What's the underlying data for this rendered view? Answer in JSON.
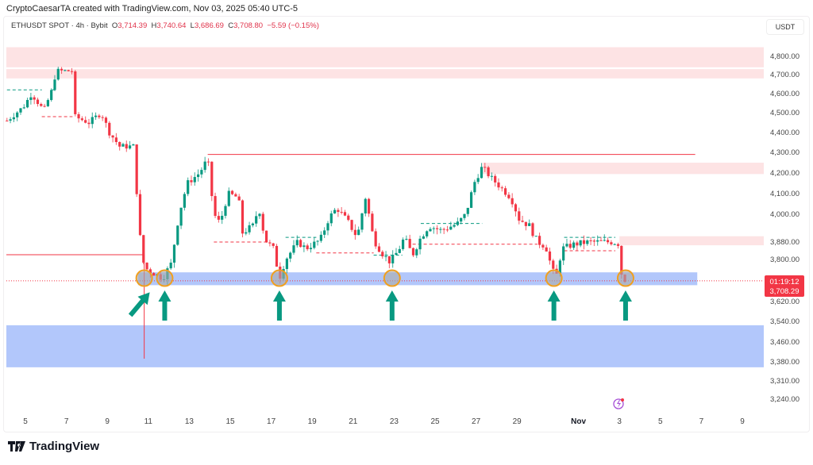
{
  "credit": "CryptoCaesarTA created with TradingView.com, Nov 03, 2025 05:40 UTC-5",
  "legend": {
    "symbol": "ETHUSDT SPOT · 4h · Bybit",
    "o_label": "O",
    "o": "3,714.39",
    "h_label": "H",
    "h": "3,740.64",
    "l_label": "L",
    "l": "3,686.69",
    "c_label": "C",
    "c": "3,708.80",
    "change": "−5.59 (−0.15%)"
  },
  "currency": "USDT",
  "price_tag": {
    "countdown": "01:19:12",
    "price": "3,708.29"
  },
  "logo": "TradingView",
  "colors": {
    "up": "#089981",
    "down": "#f23645",
    "supply": "#fde1e3",
    "demand": "#aec4fb",
    "circle": "#f0a020"
  },
  "chart_data": {
    "type": "candlestick",
    "title": "ETHUSDT SPOT 4h Bybit",
    "y_ticks": [
      {
        "v": 4800,
        "label": "4,800.00"
      },
      {
        "v": 4700,
        "label": "4,700.00"
      },
      {
        "v": 4600,
        "label": "4,600.00"
      },
      {
        "v": 4500,
        "label": "4,500.00"
      },
      {
        "v": 4400,
        "label": "4,400.00"
      },
      {
        "v": 4300,
        "label": "4,300.00"
      },
      {
        "v": 4200,
        "label": "4,200.00"
      },
      {
        "v": 4100,
        "label": "4,100.00"
      },
      {
        "v": 4000,
        "label": "4,000.00"
      },
      {
        "v": 3880,
        "label": "3,880.00"
      },
      {
        "v": 3800,
        "label": "3,800.00"
      },
      {
        "v": 3620,
        "label": "3,620.00"
      },
      {
        "v": 3540,
        "label": "3,540.00"
      },
      {
        "v": 3460,
        "label": "3,460.00"
      },
      {
        "v": 3380,
        "label": "3,380.00"
      },
      {
        "v": 3310,
        "label": "3,310.00"
      },
      {
        "v": 3240,
        "label": "3,240.00"
      }
    ],
    "x_ticks": [
      {
        "d": 5,
        "label": "5"
      },
      {
        "d": 7,
        "label": "7"
      },
      {
        "d": 9,
        "label": "9"
      },
      {
        "d": 11,
        "label": "11"
      },
      {
        "d": 13,
        "label": "13"
      },
      {
        "d": 15,
        "label": "15"
      },
      {
        "d": 17,
        "label": "17"
      },
      {
        "d": 19,
        "label": "19"
      },
      {
        "d": 21,
        "label": "21"
      },
      {
        "d": 23,
        "label": "23"
      },
      {
        "d": 25,
        "label": "25"
      },
      {
        "d": 27,
        "label": "27"
      },
      {
        "d": 29,
        "label": "29"
      },
      {
        "d": 32,
        "label": "Nov"
      },
      {
        "d": 34,
        "label": "3"
      },
      {
        "d": 36,
        "label": "5"
      },
      {
        "d": 38,
        "label": "7"
      },
      {
        "d": 40,
        "label": "9"
      }
    ],
    "price_path_day_price": [
      [
        4.1,
        4460
      ],
      [
        4.9,
        4530
      ],
      [
        5.3,
        4600
      ],
      [
        5.9,
        4510
      ],
      [
        6.3,
        4620
      ],
      [
        6.5,
        4720
      ],
      [
        7.3,
        4720
      ],
      [
        7.4,
        4480
      ],
      [
        8.1,
        4450
      ],
      [
        8.7,
        4500
      ],
      [
        9.1,
        4400
      ],
      [
        9.6,
        4330
      ],
      [
        10.3,
        4330
      ],
      [
        10.5,
        4000
      ],
      [
        10.7,
        3800
      ],
      [
        10.9,
        3760
      ],
      [
        11.3,
        3740
      ],
      [
        11.7,
        3720
      ],
      [
        12.1,
        3780
      ],
      [
        12.5,
        4000
      ],
      [
        12.9,
        4150
      ],
      [
        13.5,
        4200
      ],
      [
        13.9,
        4270
      ],
      [
        14.2,
        4000
      ],
      [
        14.5,
        3960
      ],
      [
        14.9,
        4100
      ],
      [
        15.4,
        4080
      ],
      [
        15.6,
        3920
      ],
      [
        16.1,
        3950
      ],
      [
        16.4,
        4030
      ],
      [
        16.7,
        3890
      ],
      [
        17.1,
        3850
      ],
      [
        17.4,
        3720
      ],
      [
        17.7,
        3800
      ],
      [
        18.3,
        3880
      ],
      [
        18.7,
        3850
      ],
      [
        19.4,
        3890
      ],
      [
        19.8,
        3980
      ],
      [
        20.2,
        4030
      ],
      [
        20.8,
        3960
      ],
      [
        21.2,
        3900
      ],
      [
        21.6,
        4080
      ],
      [
        22,
        3890
      ],
      [
        22.4,
        3830
      ],
      [
        22.8,
        3790
      ],
      [
        23.2,
        3840
      ],
      [
        23.5,
        3900
      ],
      [
        23.9,
        3820
      ],
      [
        24.3,
        3900
      ],
      [
        24.7,
        3950
      ],
      [
        25.3,
        3930
      ],
      [
        26.1,
        3960
      ],
      [
        26.5,
        4000
      ],
      [
        26.9,
        4150
      ],
      [
        27.3,
        4230
      ],
      [
        27.7,
        4180
      ],
      [
        28.3,
        4120
      ],
      [
        28.7,
        4080
      ],
      [
        29.1,
        3980
      ],
      [
        29.6,
        3950
      ],
      [
        30,
        3880
      ],
      [
        30.4,
        3860
      ],
      [
        30.7,
        3760
      ],
      [
        30.9,
        3720
      ],
      [
        31.2,
        3850
      ],
      [
        31.8,
        3870
      ],
      [
        32.5,
        3880
      ],
      [
        33.7,
        3880
      ],
      [
        34.0,
        3870
      ],
      [
        34.1,
        3740
      ],
      [
        34.3,
        3708.8
      ]
    ],
    "zones": [
      {
        "kind": "supply",
        "from_day": 4.0,
        "to_day": 41.2,
        "low": 4740,
        "high": 4850
      },
      {
        "kind": "supply",
        "from_day": 4.0,
        "to_day": 41.2,
        "low": 4680,
        "high": 4730
      },
      {
        "kind": "supply",
        "from_day": 27.3,
        "to_day": 41.2,
        "low": 4195,
        "high": 4250
      },
      {
        "kind": "supply",
        "from_day": 34.0,
        "to_day": 41.2,
        "low": 3865,
        "high": 3905
      },
      {
        "kind": "demand",
        "from_day": 10.5,
        "to_day": 37.8,
        "low": 3690,
        "high": 3745
      },
      {
        "kind": "demand",
        "from_day": 4.0,
        "to_day": 41.2,
        "low": 3360,
        "high": 3525
      }
    ],
    "levels": [
      {
        "price": 4290,
        "from_day": 13.9,
        "to_day": 37.7
      },
      {
        "price": 3822,
        "from_day": 4.0,
        "to_day": 10.8
      }
    ],
    "touches_day": [
      10.8,
      11.8,
      17.4,
      22.9,
      30.8,
      34.3
    ]
  }
}
